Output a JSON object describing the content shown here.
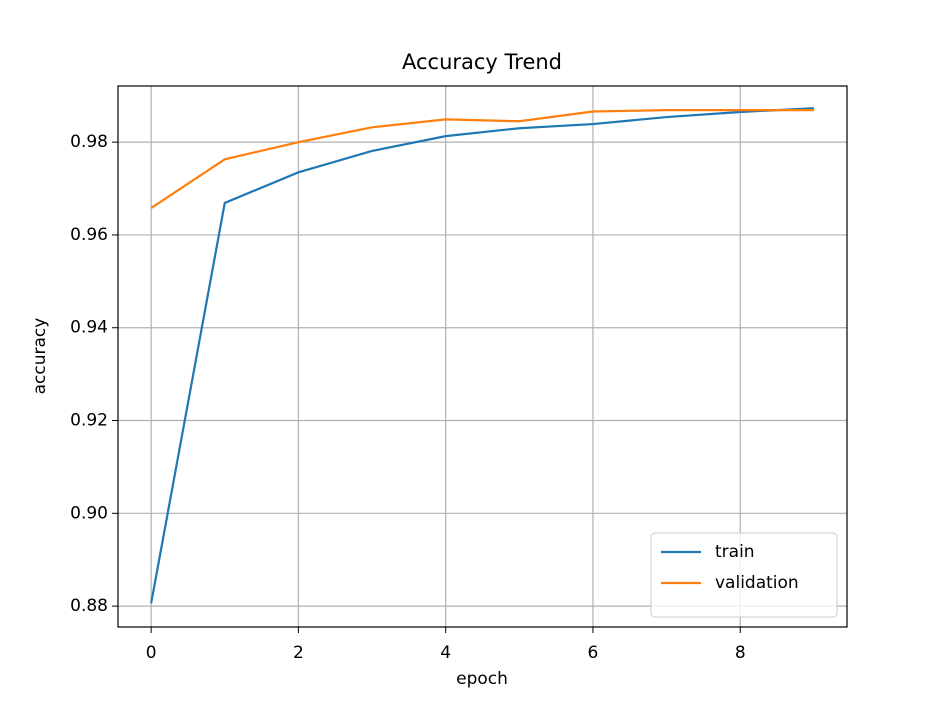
{
  "chart_data": {
    "type": "line",
    "title": "Accuracy Trend",
    "x_label": "epoch",
    "y_label": "accuracy",
    "x": [
      0,
      1,
      2,
      3,
      4,
      5,
      6,
      7,
      8,
      9
    ],
    "series": [
      {
        "name": "train",
        "color": "#1f77b4",
        "values": [
          0.8806,
          0.9669,
          0.9735,
          0.9781,
          0.9813,
          0.983,
          0.9839,
          0.9854,
          0.9865,
          0.9873
        ]
      },
      {
        "name": "validation",
        "color": "#ff7f0e",
        "values": [
          0.9658,
          0.9763,
          0.98,
          0.9832,
          0.9849,
          0.9845,
          0.9866,
          0.9869,
          0.9869,
          0.9869
        ]
      }
    ],
    "xlim": [
      -0.45,
      9.45
    ],
    "xticks": [
      0,
      2,
      4,
      6,
      8
    ],
    "ylim": [
      0.8755,
      0.9921
    ],
    "yticks": [
      0.88,
      {
        "value": 0.9,
        "label": "0.90"
      },
      0.92,
      0.94,
      0.96,
      0.98
    ],
    "grid": true,
    "legend": "lower-right"
  }
}
